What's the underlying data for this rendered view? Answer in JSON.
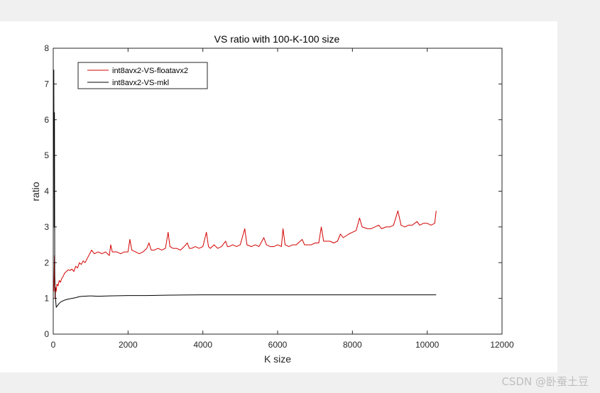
{
  "chart_data": {
    "type": "line",
    "title": "VS ratio with 100-K-100 size",
    "xlabel": "K size",
    "ylabel": "ratio",
    "xlim": [
      0,
      12000
    ],
    "ylim": [
      0,
      8
    ],
    "xticks": [
      0,
      2000,
      4000,
      6000,
      8000,
      10000,
      12000
    ],
    "yticks": [
      0,
      1,
      2,
      3,
      4,
      5,
      6,
      7,
      8
    ],
    "legend_position": "top-left",
    "grid": false,
    "series": [
      {
        "name": "int8avx2-VS-floatavx2",
        "color": "#d40000",
        "points": [
          [
            16,
            1.2
          ],
          [
            32,
            2.2
          ],
          [
            48,
            1.0
          ],
          [
            64,
            1.3
          ],
          [
            80,
            1.2
          ],
          [
            96,
            1.4
          ],
          [
            128,
            1.35
          ],
          [
            160,
            1.5
          ],
          [
            192,
            1.45
          ],
          [
            224,
            1.55
          ],
          [
            256,
            1.6
          ],
          [
            300,
            1.7
          ],
          [
            350,
            1.75
          ],
          [
            400,
            1.8
          ],
          [
            450,
            1.78
          ],
          [
            500,
            1.82
          ],
          [
            550,
            1.75
          ],
          [
            600,
            1.9
          ],
          [
            650,
            1.85
          ],
          [
            700,
            2.0
          ],
          [
            750,
            1.95
          ],
          [
            800,
            2.05
          ],
          [
            850,
            2.0
          ],
          [
            900,
            2.1
          ],
          [
            950,
            2.2
          ],
          [
            1000,
            2.3
          ],
          [
            1024,
            2.35
          ],
          [
            1100,
            2.25
          ],
          [
            1200,
            2.3
          ],
          [
            1300,
            2.25
          ],
          [
            1400,
            2.3
          ],
          [
            1500,
            2.2
          ],
          [
            1536,
            2.5
          ],
          [
            1580,
            2.3
          ],
          [
            1700,
            2.3
          ],
          [
            1800,
            2.25
          ],
          [
            1900,
            2.3
          ],
          [
            2000,
            2.3
          ],
          [
            2048,
            2.65
          ],
          [
            2100,
            2.35
          ],
          [
            2200,
            2.3
          ],
          [
            2300,
            2.25
          ],
          [
            2400,
            2.3
          ],
          [
            2500,
            2.4
          ],
          [
            2560,
            2.55
          ],
          [
            2620,
            2.35
          ],
          [
            2700,
            2.35
          ],
          [
            2800,
            2.4
          ],
          [
            2900,
            2.35
          ],
          [
            3000,
            2.4
          ],
          [
            3072,
            2.85
          ],
          [
            3120,
            2.45
          ],
          [
            3200,
            2.4
          ],
          [
            3300,
            2.4
          ],
          [
            3400,
            2.35
          ],
          [
            3500,
            2.45
          ],
          [
            3584,
            2.55
          ],
          [
            3640,
            2.4
          ],
          [
            3700,
            2.4
          ],
          [
            3800,
            2.45
          ],
          [
            3900,
            2.4
          ],
          [
            4000,
            2.45
          ],
          [
            4096,
            2.85
          ],
          [
            4150,
            2.45
          ],
          [
            4200,
            2.4
          ],
          [
            4300,
            2.5
          ],
          [
            4400,
            2.4
          ],
          [
            4500,
            2.45
          ],
          [
            4608,
            2.6
          ],
          [
            4660,
            2.45
          ],
          [
            4700,
            2.45
          ],
          [
            4800,
            2.5
          ],
          [
            4900,
            2.45
          ],
          [
            5000,
            2.5
          ],
          [
            5120,
            2.95
          ],
          [
            5180,
            2.5
          ],
          [
            5300,
            2.45
          ],
          [
            5400,
            2.5
          ],
          [
            5500,
            2.45
          ],
          [
            5632,
            2.7
          ],
          [
            5700,
            2.5
          ],
          [
            5800,
            2.45
          ],
          [
            5900,
            2.45
          ],
          [
            6000,
            2.5
          ],
          [
            6100,
            2.45
          ],
          [
            6144,
            2.95
          ],
          [
            6200,
            2.5
          ],
          [
            6300,
            2.45
          ],
          [
            6400,
            2.5
          ],
          [
            6500,
            2.5
          ],
          [
            6656,
            2.65
          ],
          [
            6720,
            2.5
          ],
          [
            6800,
            2.5
          ],
          [
            6900,
            2.5
          ],
          [
            7000,
            2.55
          ],
          [
            7100,
            2.55
          ],
          [
            7168,
            3.0
          ],
          [
            7230,
            2.6
          ],
          [
            7300,
            2.6
          ],
          [
            7400,
            2.6
          ],
          [
            7500,
            2.55
          ],
          [
            7600,
            2.6
          ],
          [
            7680,
            2.8
          ],
          [
            7750,
            2.7
          ],
          [
            7900,
            2.8
          ],
          [
            8000,
            2.85
          ],
          [
            8100,
            2.9
          ],
          [
            8192,
            3.25
          ],
          [
            8260,
            3.0
          ],
          [
            8400,
            2.95
          ],
          [
            8500,
            2.95
          ],
          [
            8600,
            3.0
          ],
          [
            8704,
            3.05
          ],
          [
            8780,
            2.95
          ],
          [
            8900,
            3.0
          ],
          [
            9000,
            3.0
          ],
          [
            9100,
            3.05
          ],
          [
            9216,
            3.45
          ],
          [
            9300,
            3.05
          ],
          [
            9400,
            3.0
          ],
          [
            9500,
            3.05
          ],
          [
            9600,
            3.05
          ],
          [
            9728,
            3.15
          ],
          [
            9800,
            3.05
          ],
          [
            9900,
            3.1
          ],
          [
            10000,
            3.1
          ],
          [
            10100,
            3.05
          ],
          [
            10200,
            3.1
          ],
          [
            10240,
            3.45
          ]
        ]
      },
      {
        "name": "int8avx2-VS-mkl",
        "color": "#000000",
        "points": [
          [
            16,
            7.4
          ],
          [
            24,
            3.0
          ],
          [
            32,
            6.2
          ],
          [
            40,
            1.6
          ],
          [
            48,
            1.3
          ],
          [
            56,
            1.05
          ],
          [
            64,
            0.95
          ],
          [
            80,
            0.75
          ],
          [
            100,
            0.78
          ],
          [
            150,
            0.85
          ],
          [
            200,
            0.9
          ],
          [
            300,
            0.95
          ],
          [
            400,
            0.98
          ],
          [
            500,
            1.0
          ],
          [
            600,
            1.02
          ],
          [
            700,
            1.05
          ],
          [
            800,
            1.06
          ],
          [
            1000,
            1.07
          ],
          [
            1200,
            1.06
          ],
          [
            1500,
            1.07
          ],
          [
            2000,
            1.08
          ],
          [
            2500,
            1.08
          ],
          [
            3000,
            1.09
          ],
          [
            4000,
            1.1
          ],
          [
            5000,
            1.1
          ],
          [
            6000,
            1.1
          ],
          [
            7000,
            1.1
          ],
          [
            8000,
            1.1
          ],
          [
            9000,
            1.1
          ],
          [
            10000,
            1.1
          ],
          [
            10240,
            1.1
          ]
        ]
      }
    ]
  },
  "watermark": "CSDN @卧蚕土豆"
}
